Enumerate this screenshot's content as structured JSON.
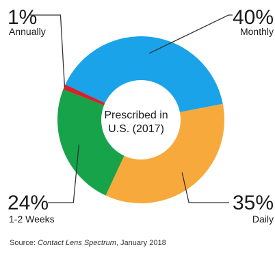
{
  "chart_data": {
    "type": "pie",
    "variant": "donut",
    "center_label": [
      "Prescribed in",
      "U.S. (2017)"
    ],
    "slices": [
      {
        "label": "Monthly",
        "value": 40,
        "value_label": "40%",
        "color": "#1aa3e8"
      },
      {
        "label": "Daily",
        "value": 35,
        "value_label": "35%",
        "color": "#f7a93b"
      },
      {
        "label": "1-2 Weeks",
        "value": 24,
        "value_label": "24%",
        "color": "#16a34a"
      },
      {
        "label": "Annually",
        "value": 1,
        "value_label": "1%",
        "color": "#d2232a"
      }
    ]
  },
  "source": {
    "prefix": "Source: ",
    "publication": "Contact Lens Spectrum",
    "suffix": ", January 2018"
  }
}
